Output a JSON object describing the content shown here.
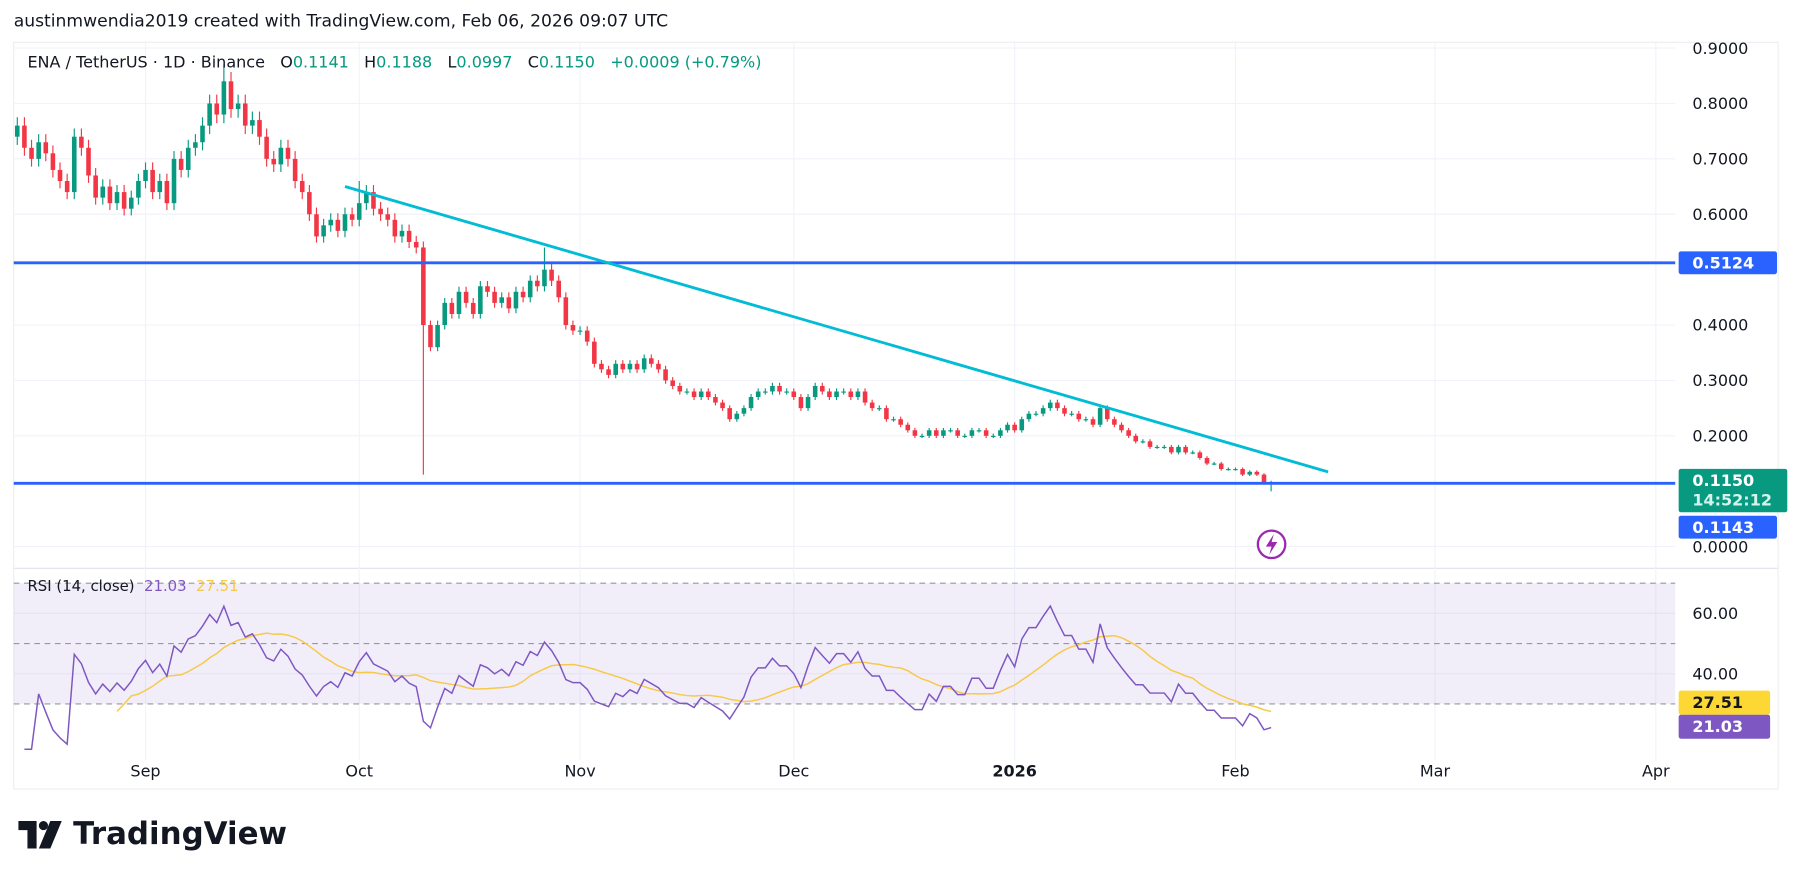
{
  "header": {
    "attribution": "austinmwendia2019 created with TradingView.com, Feb 06, 2026 09:07 UTC"
  },
  "legend": {
    "symbol": "ENA / TetherUS · 1D · Binance",
    "o_label": "O",
    "o": "0.1141",
    "h_label": "H",
    "h": "0.1188",
    "l_label": "L",
    "l": "0.0997",
    "c_label": "C",
    "c": "0.1150",
    "change": "+0.0009 (+0.79%)"
  },
  "rsi_legend": {
    "label": "RSI (14, close)",
    "rsi": "21.03",
    "ma": "27.51"
  },
  "logo": {
    "text": "TradingView"
  },
  "colors": {
    "up": "#089981",
    "down": "#f23645",
    "level": "#2962ff",
    "trend": "#00bcd4",
    "rsi": "#7e57c2",
    "rsi_ma": "#f7c948",
    "last_price": "#089981"
  },
  "chart_data": {
    "type": "candlestick",
    "start_date": "2025-08-14",
    "interval": "1D",
    "closes": [
      0.76,
      0.72,
      0.7,
      0.73,
      0.71,
      0.68,
      0.66,
      0.64,
      0.74,
      0.72,
      0.67,
      0.63,
      0.65,
      0.62,
      0.64,
      0.61,
      0.63,
      0.66,
      0.68,
      0.64,
      0.66,
      0.62,
      0.7,
      0.68,
      0.72,
      0.73,
      0.76,
      0.8,
      0.78,
      0.84,
      0.79,
      0.8,
      0.76,
      0.77,
      0.74,
      0.7,
      0.69,
      0.72,
      0.7,
      0.66,
      0.64,
      0.6,
      0.56,
      0.58,
      0.59,
      0.57,
      0.6,
      0.59,
      0.62,
      0.64,
      0.61,
      0.6,
      0.59,
      0.56,
      0.57,
      0.55,
      0.54,
      0.4,
      0.36,
      0.4,
      0.44,
      0.42,
      0.46,
      0.44,
      0.42,
      0.47,
      0.46,
      0.44,
      0.45,
      0.43,
      0.46,
      0.45,
      0.48,
      0.47,
      0.5,
      0.48,
      0.45,
      0.4,
      0.39,
      0.39,
      0.37,
      0.33,
      0.32,
      0.31,
      0.33,
      0.32,
      0.33,
      0.32,
      0.34,
      0.33,
      0.32,
      0.3,
      0.29,
      0.28,
      0.28,
      0.27,
      0.28,
      0.27,
      0.26,
      0.25,
      0.23,
      0.24,
      0.25,
      0.27,
      0.28,
      0.28,
      0.29,
      0.28,
      0.28,
      0.27,
      0.25,
      0.27,
      0.29,
      0.28,
      0.27,
      0.28,
      0.28,
      0.27,
      0.28,
      0.26,
      0.25,
      0.25,
      0.23,
      0.23,
      0.22,
      0.21,
      0.2,
      0.2,
      0.21,
      0.2,
      0.21,
      0.21,
      0.2,
      0.2,
      0.21,
      0.21,
      0.2,
      0.2,
      0.21,
      0.22,
      0.21,
      0.23,
      0.24,
      0.24,
      0.25,
      0.26,
      0.25,
      0.24,
      0.24,
      0.23,
      0.23,
      0.22,
      0.25,
      0.23,
      0.22,
      0.21,
      0.2,
      0.19,
      0.19,
      0.18,
      0.18,
      0.18,
      0.17,
      0.18,
      0.17,
      0.17,
      0.16,
      0.15,
      0.15,
      0.14,
      0.14,
      0.14,
      0.13,
      0.135,
      0.13,
      0.1141,
      0.115
    ],
    "first_open": 0.74,
    "wick_overrides": [
      {
        "date": "2025-09-12",
        "high": 0.87
      },
      {
        "date": "2025-10-01",
        "high": 0.66
      },
      {
        "date": "2025-10-10",
        "low": 0.13
      },
      {
        "date": "2025-10-27",
        "high": 0.54
      },
      {
        "date": "2026-02-06",
        "open": 0.1141,
        "high": 0.1188,
        "low": 0.0997
      }
    ],
    "y_ticks": [
      "0.9000",
      "0.8000",
      "0.7000",
      "0.6000",
      "0.4000",
      "0.3000",
      "0.2000",
      "0.0000"
    ],
    "ylim": [
      0,
      0.9
    ],
    "x_ticks": [
      {
        "label": "Sep",
        "date": "2025-09-01"
      },
      {
        "label": "Oct",
        "date": "2025-10-01"
      },
      {
        "label": "Nov",
        "date": "2025-11-01"
      },
      {
        "label": "Dec",
        "date": "2025-12-01"
      },
      {
        "label": "2026",
        "date": "2026-01-01"
      },
      {
        "label": "Feb",
        "date": "2026-02-01"
      },
      {
        "label": "Mar",
        "date": "2026-03-01"
      },
      {
        "label": "Apr",
        "date": "2026-04-01"
      }
    ],
    "horizontal_levels": [
      {
        "price": 0.5124,
        "label": "0.5124"
      },
      {
        "price": 0.1143,
        "label": "0.1143"
      }
    ],
    "trendline": {
      "from": {
        "date": "2025-09-29",
        "price": 0.65
      },
      "to": {
        "date": "2026-02-14",
        "price": 0.135
      }
    },
    "last_price": {
      "label": "0.1150",
      "countdown": "14:52:12"
    },
    "rsi": {
      "period": 14,
      "ma_period": 14,
      "bands": [
        70,
        50,
        30
      ],
      "y_ticks": [
        "60.00",
        "40.00"
      ],
      "last": "21.03",
      "ma_last": "27.51",
      "ylim": [
        14,
        75
      ]
    }
  }
}
